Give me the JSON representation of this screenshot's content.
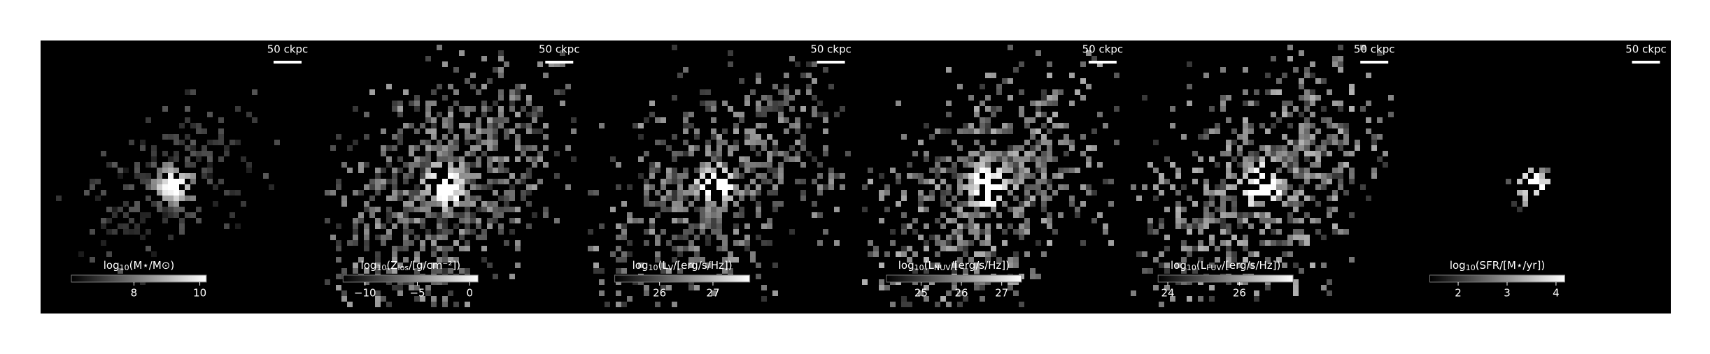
{
  "panels": [
    {
      "scale_label": "50 ckpc",
      "label_parts": [
        "log",
        "10",
        "(M⋆/M⊙)"
      ],
      "clim": [
        6.1,
        10.2
      ],
      "ticks": [
        8,
        10
      ]
    },
    {
      "scale_label": "50 ckpc",
      "label_parts": [
        "log",
        "10",
        "(Z",
        "los",
        "/[g/cm⁻²])"
      ],
      "clim": [
        -12.1,
        0.8
      ],
      "ticks": [
        {
          "value": -10,
          "label": "−10"
        },
        {
          "value": -5,
          "label": "−5"
        },
        0
      ]
    },
    {
      "scale_label": "50 ckpc",
      "label_parts": [
        "log",
        "10",
        "(L",
        "V",
        "/[erg/s/Hz])"
      ],
      "clim": [
        25.16,
        27.69
      ],
      "ticks": [
        26,
        27
      ]
    },
    {
      "scale_label": "50 ckpc",
      "label_parts": [
        "log",
        "10",
        "(L",
        "NUV",
        "/[erg/s/Hz])"
      ],
      "clim": [
        24.14,
        27.49
      ],
      "ticks": [
        25,
        26,
        27
      ]
    },
    {
      "scale_label": "50 ckpc",
      "label_parts": [
        "log",
        "10",
        "(L",
        "FUV",
        "/[erg/s/Hz])"
      ],
      "clim": [
        23.73,
        27.5
      ],
      "ticks": [
        24,
        26
      ]
    },
    {
      "scale_label": "50 ckpc",
      "label_parts": [
        "log",
        "10",
        "(SFR/[M⋆/yr])"
      ],
      "clim": [
        1.42,
        4.18
      ],
      "ticks": [
        2,
        3,
        4
      ]
    }
  ]
}
